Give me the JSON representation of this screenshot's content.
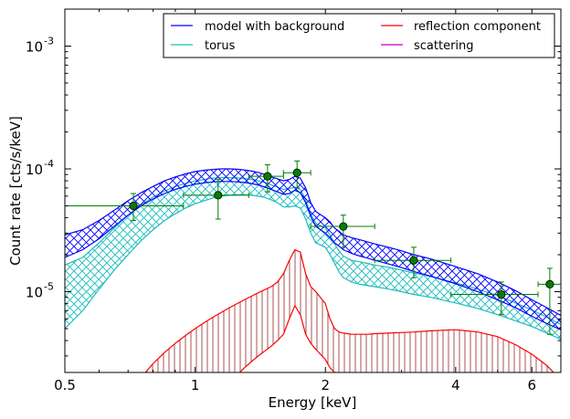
{
  "chart_data": {
    "type": "line",
    "title": "",
    "xlabel": "Energy [keV]",
    "ylabel": "Count rate [cts/s/keV]",
    "x_scale": "log",
    "y_scale": "log",
    "xlim": [
      0.5,
      7.0
    ],
    "ylim": [
      2.2e-06,
      0.002
    ],
    "x_ticks": [
      {
        "value": 0.5,
        "label": "0.5"
      },
      {
        "value": 1,
        "label": "1"
      },
      {
        "value": 2,
        "label": "2"
      },
      {
        "value": 4,
        "label": "4"
      },
      {
        "value": 6,
        "label": "6"
      }
    ],
    "y_ticks": [
      {
        "value": 1e-05,
        "base": "10",
        "exp": "-5"
      },
      {
        "value": 0.0001,
        "base": "10",
        "exp": "-4"
      },
      {
        "value": 0.001,
        "base": "10",
        "exp": "-3"
      }
    ],
    "legend": {
      "placement": "top-right",
      "columns": 2,
      "entries": [
        {
          "label": "model with background",
          "color": "#0000ff"
        },
        {
          "label": "torus",
          "color": "#1cbcbc"
        },
        {
          "label": "reflection component",
          "color": "#ff0000"
        },
        {
          "label": "scattering",
          "color": "#bf00bf"
        }
      ]
    },
    "x": [
      0.5,
      0.55,
      0.6,
      0.65,
      0.7,
      0.75,
      0.8,
      0.85,
      0.9,
      0.95,
      1.0,
      1.05,
      1.1,
      1.15,
      1.2,
      1.25,
      1.3,
      1.35,
      1.4,
      1.45,
      1.5,
      1.55,
      1.6,
      1.65,
      1.7,
      1.75,
      1.8,
      1.85,
      1.9,
      2.0,
      2.05,
      2.1,
      2.15,
      2.2,
      2.3,
      2.4,
      2.5,
      2.6,
      2.8,
      3.0,
      3.2,
      3.5,
      4.0,
      4.5,
      5.0,
      5.5,
      6.0,
      6.5,
      7.0
    ],
    "series": [
      {
        "name": "model with background",
        "color": "#0000ff",
        "hatch": "crosshatch",
        "upper": [
          2.9e-05,
          3.2e-05,
          3.8e-05,
          4.6e-05,
          5.5e-05,
          6.4e-05,
          7.2e-05,
          8e-05,
          8.6e-05,
          9.1e-05,
          9.5e-05,
          9.75e-05,
          9.9e-05,
          0.0001,
          0.0001,
          9.95e-05,
          9.8e-05,
          9.6e-05,
          9.35e-05,
          9e-05,
          8.6e-05,
          8.3e-05,
          8e-05,
          8.2e-05,
          8.7e-05,
          8.4e-05,
          7e-05,
          5.3e-05,
          4.5e-05,
          4e-05,
          3.7e-05,
          3.3e-05,
          3.1e-05,
          2.9e-05,
          2.75e-05,
          2.65e-05,
          2.55e-05,
          2.45e-05,
          2.3e-05,
          2.15e-05,
          2e-05,
          1.85e-05,
          1.6e-05,
          1.4e-05,
          1.2e-05,
          1.02e-05,
          8.6e-06,
          7.4e-06,
          6.4e-06
        ],
        "lower": [
          1.9e-05,
          2.2e-05,
          2.7e-05,
          3.4e-05,
          4.2e-05,
          5e-05,
          5.7e-05,
          6.3e-05,
          6.8e-05,
          7.2e-05,
          7.5e-05,
          7.7e-05,
          7.85e-05,
          7.9e-05,
          7.9e-05,
          7.85e-05,
          7.75e-05,
          7.6e-05,
          7.4e-05,
          7.1e-05,
          6.8e-05,
          6.5e-05,
          6.2e-05,
          6.3e-05,
          6.7e-05,
          6.4e-05,
          5.3e-05,
          4.1e-05,
          3.4e-05,
          3e-05,
          2.75e-05,
          2.5e-05,
          2.35e-05,
          2.2e-05,
          2.05e-05,
          1.95e-05,
          1.88e-05,
          1.8e-05,
          1.68e-05,
          1.57e-05,
          1.46e-05,
          1.34e-05,
          1.16e-05,
          1e-05,
          8.6e-06,
          7.4e-06,
          6.3e-06,
          5.5e-06,
          4.9e-06
        ]
      },
      {
        "name": "torus",
        "color": "#1cbcbc",
        "hatch": "crosshatch",
        "upper": [
          1.65e-05,
          1.9e-05,
          2.5e-05,
          3.3e-05,
          4.2e-05,
          5.1e-05,
          5.9e-05,
          6.6e-05,
          7.2e-05,
          7.6e-05,
          8e-05,
          8.2e-05,
          8.4e-05,
          8.5e-05,
          8.5e-05,
          8.45e-05,
          8.35e-05,
          8.2e-05,
          8e-05,
          7.75e-05,
          7.4e-05,
          7.1e-05,
          6.8e-05,
          6.9e-05,
          7.1e-05,
          6.8e-05,
          5.6e-05,
          4.3e-05,
          3.6e-05,
          3.3e-05,
          2.9e-05,
          2.45e-05,
          2.15e-05,
          1.95e-05,
          1.8e-05,
          1.75e-05,
          1.7e-05,
          1.65e-05,
          1.58e-05,
          1.5e-05,
          1.42e-05,
          1.33e-05,
          1.18e-05,
          1.05e-05,
          9.3e-06,
          8.1e-06,
          7.1e-06,
          6.2e-06,
          5.4e-06
        ],
        "lower": [
          5e-06,
          7e-06,
          1.05e-05,
          1.5e-05,
          2e-05,
          2.6e-05,
          3.2e-05,
          3.8e-05,
          4.3e-05,
          4.8e-05,
          5.2e-05,
          5.5e-05,
          5.8e-05,
          6e-05,
          6.1e-05,
          6.15e-05,
          6.15e-05,
          6.1e-05,
          6e-05,
          5.85e-05,
          5.6e-05,
          5.3e-05,
          4.9e-05,
          4.9e-05,
          5e-05,
          4.8e-05,
          3.9e-05,
          3e-05,
          2.5e-05,
          2.3e-05,
          2e-05,
          1.7e-05,
          1.45e-05,
          1.3e-05,
          1.2e-05,
          1.15e-05,
          1.12e-05,
          1.1e-05,
          1.05e-05,
          1e-05,
          9.5e-06,
          9e-06,
          8.1e-06,
          7.3e-06,
          6.5e-06,
          5.8e-06,
          5.2e-06,
          4.6e-06,
          4.1e-06
        ]
      },
      {
        "name": "reflection component",
        "color": "#ff0000",
        "hatch": "vertical",
        "upper": [
          null,
          null,
          null,
          null,
          1.5e-06,
          2e-06,
          2.6e-06,
          3.2e-06,
          3.8e-06,
          4.4e-06,
          5e-06,
          5.6e-06,
          6.2e-06,
          6.8e-06,
          7.4e-06,
          8e-06,
          8.6e-06,
          9.2e-06,
          9.8e-06,
          1.04e-05,
          1.1e-05,
          1.2e-05,
          1.4e-05,
          1.8e-05,
          2.2e-05,
          2.1e-05,
          1.4e-05,
          1.1e-05,
          1e-05,
          8e-06,
          6e-06,
          5e-06,
          4.7e-06,
          4.6e-06,
          4.5e-06,
          4.5e-06,
          4.5e-06,
          4.55e-06,
          4.6e-06,
          4.65e-06,
          4.7e-06,
          4.8e-06,
          4.9e-06,
          4.7e-06,
          4.3e-06,
          3.7e-06,
          3.1e-06,
          2.5e-06,
          1.9e-06
        ],
        "lower": [
          null,
          null,
          null,
          null,
          null,
          null,
          null,
          null,
          null,
          null,
          null,
          null,
          1.2e-06,
          1.5e-06,
          1.8e-06,
          2.1e-06,
          2.4e-06,
          2.7e-06,
          3e-06,
          3.3e-06,
          3.6e-06,
          4e-06,
          4.5e-06,
          6e-06,
          7.7e-06,
          6.5e-06,
          4.5e-06,
          3.8e-06,
          3.4e-06,
          2.8e-06,
          2.4e-06,
          2.2e-06,
          2.1e-06,
          2.05e-06,
          2e-06,
          1.95e-06,
          1.9e-06,
          1.85e-06,
          1.8e-06,
          1.75e-06,
          1.7e-06,
          1.6e-06,
          1.45e-06,
          1.3e-06,
          1.15e-06,
          1e-06,
          9e-07,
          8e-07,
          7e-07
        ]
      },
      {
        "name": "scattering",
        "color": "#bf00bf",
        "hatch": "none",
        "upper": [],
        "lower": []
      }
    ],
    "data_points": [
      {
        "x": 0.72,
        "y": 5e-05,
        "xlo": 0.5,
        "xhi": 0.94,
        "ylo": 3.8e-05,
        "yhi": 6.3e-05
      },
      {
        "x": 1.13,
        "y": 6.1e-05,
        "xlo": 0.94,
        "xhi": 1.33,
        "ylo": 3.9e-05,
        "yhi": 8.2e-05
      },
      {
        "x": 1.47,
        "y": 8.7e-05,
        "xlo": 1.33,
        "xhi": 1.6,
        "ylo": 6.5e-05,
        "yhi": 0.000108
      },
      {
        "x": 1.72,
        "y": 9.3e-05,
        "xlo": 1.6,
        "xhi": 1.85,
        "ylo": 7e-05,
        "yhi": 0.000116
      },
      {
        "x": 2.2,
        "y": 3.4e-05,
        "xlo": 1.85,
        "xhi": 2.6,
        "ylo": 2.3e-05,
        "yhi": 4.2e-05
      },
      {
        "x": 3.2,
        "y": 1.8e-05,
        "xlo": 2.6,
        "xhi": 3.9,
        "ylo": 1.3e-05,
        "yhi": 2.3e-05
      },
      {
        "x": 5.1,
        "y": 9.5e-06,
        "xlo": 3.9,
        "xhi": 6.2,
        "ylo": 6.5e-06,
        "yhi": 1.2e-05
      },
      {
        "x": 6.6,
        "y": 1.15e-05,
        "xlo": 6.2,
        "xhi": 7.0,
        "ylo": 4.5e-06,
        "yhi": 1.55e-05
      }
    ],
    "data_point_color": "#007f00"
  }
}
